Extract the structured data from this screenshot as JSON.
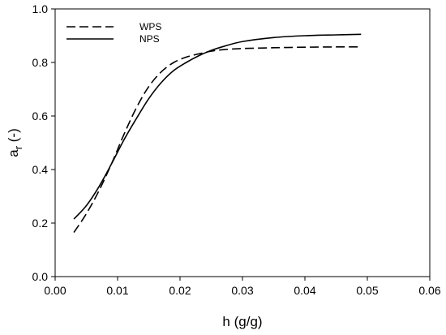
{
  "chart_data": {
    "type": "line",
    "title": "",
    "xlabel": "h (g/g)",
    "ylabel": {
      "main": "a",
      "subscript": "r",
      "suffix": " (-)"
    },
    "xlim": [
      0.0,
      0.06
    ],
    "ylim": [
      0.0,
      1.0
    ],
    "xticks": [
      0.0,
      0.01,
      0.02,
      0.03,
      0.04,
      0.05,
      0.06
    ],
    "xtick_labels": [
      "0.00",
      "0.01",
      "0.02",
      "0.03",
      "0.04",
      "0.05",
      "0.06"
    ],
    "yticks": [
      0.0,
      0.2,
      0.4,
      0.6,
      0.8,
      1.0
    ],
    "ytick_labels": [
      "0.0",
      "0.2",
      "0.4",
      "0.6",
      "0.8",
      "1.0"
    ],
    "grid": false,
    "legend_position": "top-left",
    "series": [
      {
        "name": "WPS",
        "style": "dashed",
        "color": "#000000",
        "x": [
          0.003,
          0.005,
          0.007,
          0.009,
          0.011,
          0.013,
          0.015,
          0.017,
          0.019,
          0.021,
          0.023,
          0.025,
          0.027,
          0.03,
          0.035,
          0.04,
          0.045,
          0.049
        ],
        "y": [
          0.165,
          0.235,
          0.32,
          0.42,
          0.53,
          0.63,
          0.71,
          0.765,
          0.8,
          0.82,
          0.832,
          0.842,
          0.848,
          0.852,
          0.855,
          0.857,
          0.858,
          0.858
        ]
      },
      {
        "name": "NPS",
        "style": "solid",
        "color": "#000000",
        "x": [
          0.003,
          0.005,
          0.007,
          0.009,
          0.011,
          0.013,
          0.015,
          0.017,
          0.019,
          0.021,
          0.023,
          0.025,
          0.027,
          0.03,
          0.035,
          0.04,
          0.045,
          0.049
        ],
        "y": [
          0.215,
          0.265,
          0.335,
          0.42,
          0.51,
          0.59,
          0.665,
          0.725,
          0.77,
          0.8,
          0.825,
          0.845,
          0.86,
          0.878,
          0.893,
          0.9,
          0.903,
          0.905
        ]
      }
    ]
  }
}
